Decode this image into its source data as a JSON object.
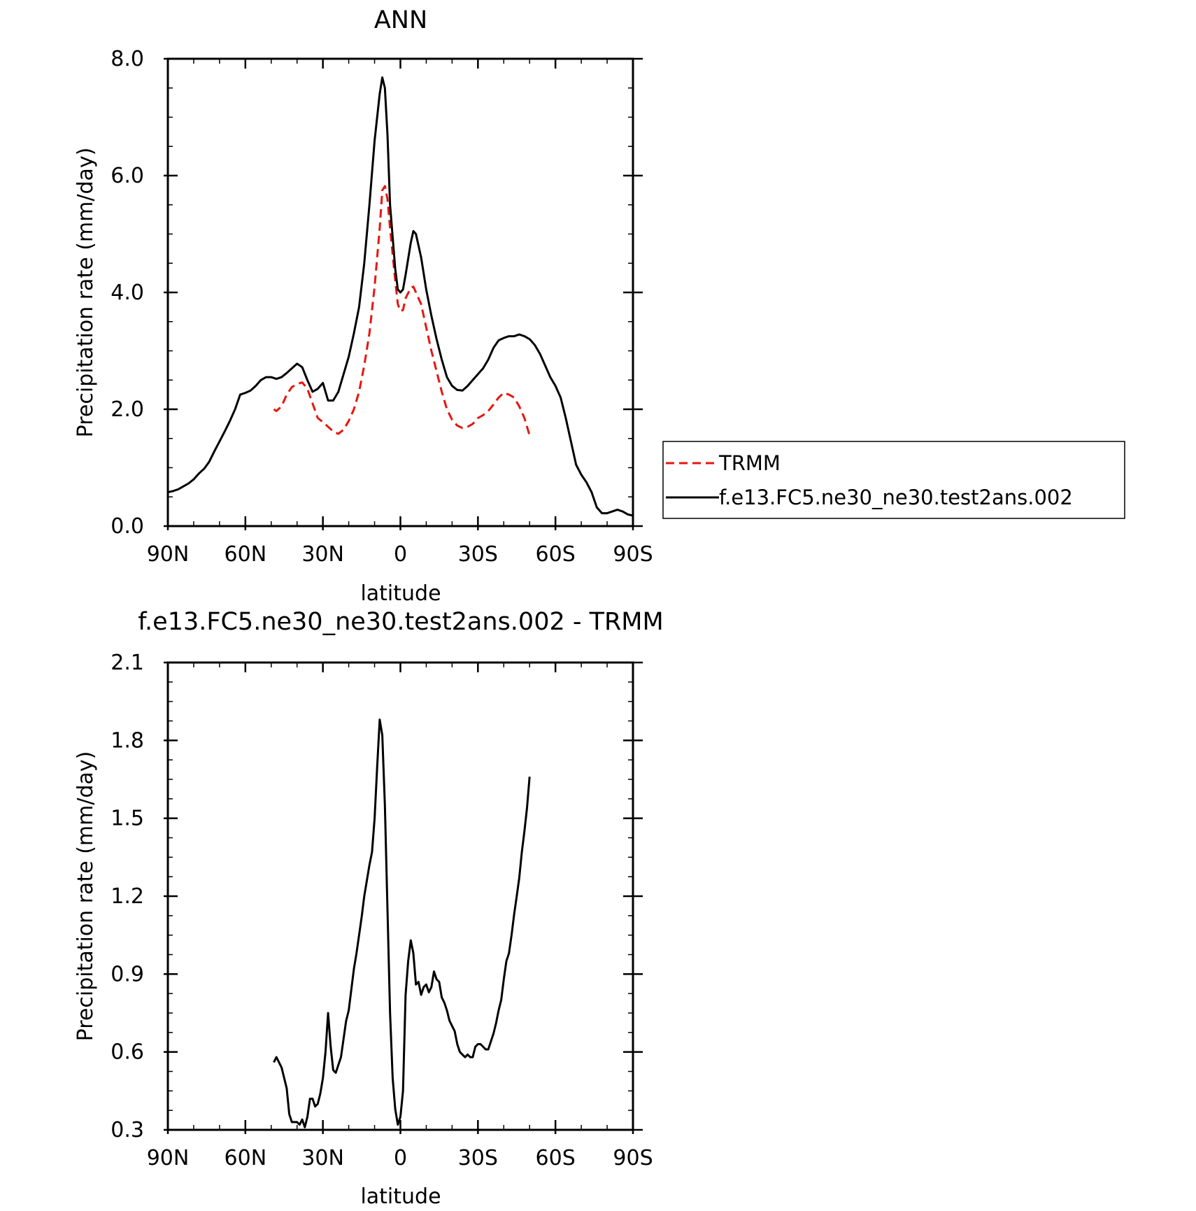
{
  "colors": {
    "model": "#000000",
    "trmm": "#e8150f",
    "background": "#ffffff"
  },
  "chart_data": [
    {
      "type": "line",
      "title": "ANN",
      "xlabel": "latitude",
      "ylabel": "Precipitation rate (mm/day)",
      "xlim": [
        90,
        -90
      ],
      "ylim": [
        0.0,
        8.0
      ],
      "x_ticks": [
        {
          "value": 90,
          "label": "90N"
        },
        {
          "value": 60,
          "label": "60N"
        },
        {
          "value": 30,
          "label": "30N"
        },
        {
          "value": 0,
          "label": "0"
        },
        {
          "value": -30,
          "label": "30S"
        },
        {
          "value": -60,
          "label": "60S"
        },
        {
          "value": -90,
          "label": "90S"
        }
      ],
      "y_ticks": [
        {
          "value": 0.0,
          "label": "0.0"
        },
        {
          "value": 2.0,
          "label": "2.0"
        },
        {
          "value": 4.0,
          "label": "4.0"
        },
        {
          "value": 6.0,
          "label": "6.0"
        },
        {
          "value": 8.0,
          "label": "8.0"
        }
      ],
      "legend_position": "right",
      "series": [
        {
          "name": "TRMM",
          "style": "dashed",
          "color": "#e8150f",
          "x": [
            49,
            48,
            46,
            44,
            42,
            40,
            38,
            36,
            34,
            32,
            30,
            28,
            26,
            24,
            22,
            20,
            18,
            16,
            14,
            12,
            10,
            8,
            7,
            6,
            5,
            4,
            2,
            1,
            0,
            -1,
            -2,
            -4,
            -5,
            -6,
            -8,
            -10,
            -12,
            -14,
            -16,
            -18,
            -20,
            -22,
            -24,
            -26,
            -28,
            -30,
            -32,
            -34,
            -36,
            -38,
            -40,
            -42,
            -44,
            -46,
            -48,
            -50
          ],
          "y": [
            2.0,
            1.97,
            2.05,
            2.25,
            2.38,
            2.43,
            2.46,
            2.35,
            2.1,
            1.85,
            1.78,
            1.7,
            1.62,
            1.58,
            1.65,
            1.8,
            2.0,
            2.3,
            2.75,
            3.3,
            4.1,
            5.1,
            5.75,
            5.82,
            5.6,
            5.1,
            4.2,
            3.8,
            3.68,
            3.7,
            3.9,
            4.08,
            4.1,
            4.0,
            3.8,
            3.4,
            3.0,
            2.65,
            2.3,
            2.0,
            1.82,
            1.72,
            1.68,
            1.7,
            1.75,
            1.85,
            1.9,
            1.97,
            2.08,
            2.2,
            2.28,
            2.25,
            2.2,
            2.05,
            1.85,
            1.55
          ]
        },
        {
          "name": "f.e13.FC5.ne30_ne30.test2ans.002",
          "style": "solid",
          "color": "#000000",
          "x": [
            90,
            88,
            86,
            84,
            82,
            80,
            78,
            76,
            74,
            72,
            70,
            68,
            66,
            64,
            62,
            60,
            58,
            56,
            54,
            52,
            50,
            48,
            46,
            44,
            42,
            40,
            38,
            36,
            34,
            32,
            30,
            28,
            26,
            24,
            22,
            20,
            18,
            16,
            14,
            12,
            10,
            8,
            7,
            6,
            5,
            4,
            2,
            1,
            0,
            -1,
            -2,
            -4,
            -5,
            -6,
            -8,
            -10,
            -12,
            -14,
            -16,
            -18,
            -20,
            -22,
            -24,
            -26,
            -28,
            -30,
            -32,
            -34,
            -36,
            -38,
            -40,
            -42,
            -44,
            -46,
            -48,
            -50,
            -52,
            -54,
            -56,
            -58,
            -60,
            -62,
            -64,
            -66,
            -68,
            -70,
            -72,
            -74,
            -76,
            -78,
            -80,
            -82,
            -84,
            -86,
            -88,
            -90
          ],
          "y": [
            0.58,
            0.6,
            0.63,
            0.68,
            0.73,
            0.8,
            0.9,
            0.98,
            1.1,
            1.28,
            1.45,
            1.62,
            1.8,
            2.0,
            2.25,
            2.28,
            2.32,
            2.4,
            2.5,
            2.55,
            2.55,
            2.52,
            2.55,
            2.62,
            2.7,
            2.78,
            2.72,
            2.5,
            2.3,
            2.35,
            2.45,
            2.15,
            2.15,
            2.3,
            2.6,
            2.9,
            3.3,
            3.75,
            4.5,
            5.5,
            6.6,
            7.4,
            7.68,
            7.5,
            6.7,
            5.5,
            4.4,
            4.05,
            4.0,
            4.05,
            4.3,
            4.85,
            5.05,
            5.0,
            4.6,
            4.05,
            3.6,
            3.2,
            2.85,
            2.55,
            2.4,
            2.33,
            2.32,
            2.4,
            2.5,
            2.6,
            2.7,
            2.85,
            3.05,
            3.18,
            3.22,
            3.25,
            3.25,
            3.28,
            3.25,
            3.2,
            3.1,
            2.95,
            2.75,
            2.55,
            2.4,
            2.2,
            1.85,
            1.45,
            1.05,
            0.88,
            0.75,
            0.58,
            0.32,
            0.22,
            0.22,
            0.25,
            0.28,
            0.25,
            0.2,
            0.18
          ]
        }
      ]
    },
    {
      "type": "line",
      "title": "f.e13.FC5.ne30_ne30.test2ans.002 - TRMM",
      "xlabel": "latitude",
      "ylabel": "Precipitation rate (mm/day)",
      "xlim": [
        90,
        -90
      ],
      "ylim": [
        0.3,
        2.1
      ],
      "x_ticks": [
        {
          "value": 90,
          "label": "90N"
        },
        {
          "value": 60,
          "label": "60N"
        },
        {
          "value": 30,
          "label": "30N"
        },
        {
          "value": 0,
          "label": "0"
        },
        {
          "value": -30,
          "label": "30S"
        },
        {
          "value": -60,
          "label": "60S"
        },
        {
          "value": -90,
          "label": "90S"
        }
      ],
      "y_ticks": [
        {
          "value": 0.3,
          "label": "0.3"
        },
        {
          "value": 0.6,
          "label": "0.6"
        },
        {
          "value": 0.9,
          "label": "0.9"
        },
        {
          "value": 1.2,
          "label": "1.2"
        },
        {
          "value": 1.5,
          "label": "1.5"
        },
        {
          "value": 1.8,
          "label": "1.8"
        },
        {
          "value": 2.1,
          "label": "2.1"
        }
      ],
      "series": [
        {
          "style": "solid",
          "color": "#000000",
          "x": [
            49,
            48,
            46,
            44,
            43,
            42,
            41,
            40,
            39,
            38,
            37,
            36,
            35,
            34,
            33,
            32,
            31,
            30,
            29,
            28,
            27,
            26,
            25,
            24,
            23,
            22,
            21,
            20,
            19,
            18,
            17,
            16,
            15,
            14,
            13,
            12,
            11,
            10,
            9,
            8,
            7,
            6,
            5,
            4,
            3,
            2,
            1,
            0,
            -1,
            -2,
            -3,
            -4,
            -5,
            -6,
            -7,
            -8,
            -9,
            -10,
            -11,
            -12,
            -13,
            -14,
            -15,
            -16,
            -17,
            -18,
            -19,
            -20,
            -21,
            -22,
            -23,
            -24,
            -25,
            -26,
            -27,
            -28,
            -29,
            -30,
            -31,
            -32,
            -33,
            -34,
            -35,
            -36,
            -37,
            -38,
            -39,
            -40,
            -41,
            -42,
            -43,
            -44,
            -45,
            -46,
            -47,
            -48,
            -49,
            -50
          ],
          "y": [
            0.56,
            0.58,
            0.54,
            0.46,
            0.36,
            0.33,
            0.33,
            0.33,
            0.32,
            0.34,
            0.31,
            0.35,
            0.42,
            0.42,
            0.39,
            0.4,
            0.44,
            0.5,
            0.6,
            0.75,
            0.62,
            0.53,
            0.52,
            0.55,
            0.58,
            0.65,
            0.72,
            0.76,
            0.84,
            0.92,
            0.98,
            1.05,
            1.12,
            1.2,
            1.26,
            1.32,
            1.37,
            1.5,
            1.7,
            1.88,
            1.82,
            1.55,
            1.15,
            0.75,
            0.5,
            0.38,
            0.32,
            0.35,
            0.45,
            0.82,
            0.95,
            1.03,
            0.98,
            0.86,
            0.87,
            0.82,
            0.85,
            0.86,
            0.83,
            0.85,
            0.91,
            0.88,
            0.87,
            0.81,
            0.79,
            0.76,
            0.72,
            0.7,
            0.68,
            0.63,
            0.6,
            0.59,
            0.58,
            0.59,
            0.58,
            0.58,
            0.62,
            0.63,
            0.63,
            0.62,
            0.61,
            0.61,
            0.64,
            0.67,
            0.71,
            0.76,
            0.8,
            0.88,
            0.95,
            0.98,
            1.05,
            1.13,
            1.2,
            1.27,
            1.37,
            1.45,
            1.54,
            1.66
          ]
        }
      ]
    }
  ]
}
